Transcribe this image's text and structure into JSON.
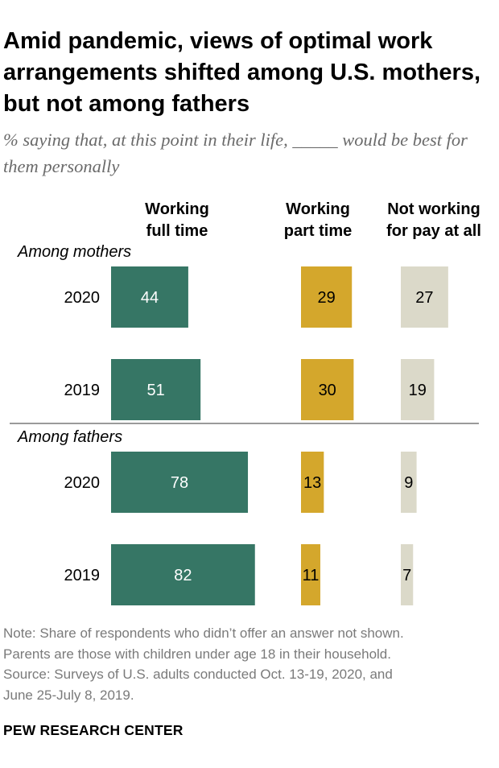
{
  "title": "Amid pandemic, views of optimal work arrangements shifted among U.S. mothers, but not among fathers",
  "subtitle": "% saying that, at this point in their life, _____ would be best for them personally",
  "note": {
    "lines": [
      "Note: Share of respondents who didn’t offer an answer not shown.",
      "Parents are those with children under age 18 in their household.",
      "Source: Surveys of U.S. adults conducted Oct. 13-19, 2020, and",
      "June 25-July 8, 2019."
    ]
  },
  "source_org": "PEW RESEARCH CENTER",
  "colors": {
    "full_time": "#367665",
    "part_time": "#d4a72c",
    "not_working": "#dbd9c9",
    "divider": "#9a9a9a"
  },
  "chart_data": {
    "type": "bar",
    "orientation": "horizontal",
    "title": "Amid pandemic, views of optimal work arrangements shifted among U.S. mothers, but not among fathers",
    "series": [
      {
        "name": "Working full time",
        "label": "Working\nfull time",
        "color_key": "full_time"
      },
      {
        "name": "Working part time",
        "label": "Working\npart time",
        "color_key": "part_time"
      },
      {
        "name": "Not working for pay at all",
        "label": "Not working\nfor pay at all",
        "color_key": "not_working"
      }
    ],
    "groups": [
      {
        "label": "Among mothers",
        "rows": [
          {
            "year": "2020",
            "values": [
              44,
              29,
              27
            ]
          },
          {
            "year": "2019",
            "values": [
              51,
              30,
              19
            ]
          }
        ]
      },
      {
        "label": "Among fathers",
        "rows": [
          {
            "year": "2020",
            "values": [
              78,
              13,
              9
            ]
          },
          {
            "year": "2019",
            "values": [
              82,
              11,
              7
            ]
          }
        ]
      }
    ],
    "unit": "%",
    "xlim": [
      0,
      100
    ]
  }
}
